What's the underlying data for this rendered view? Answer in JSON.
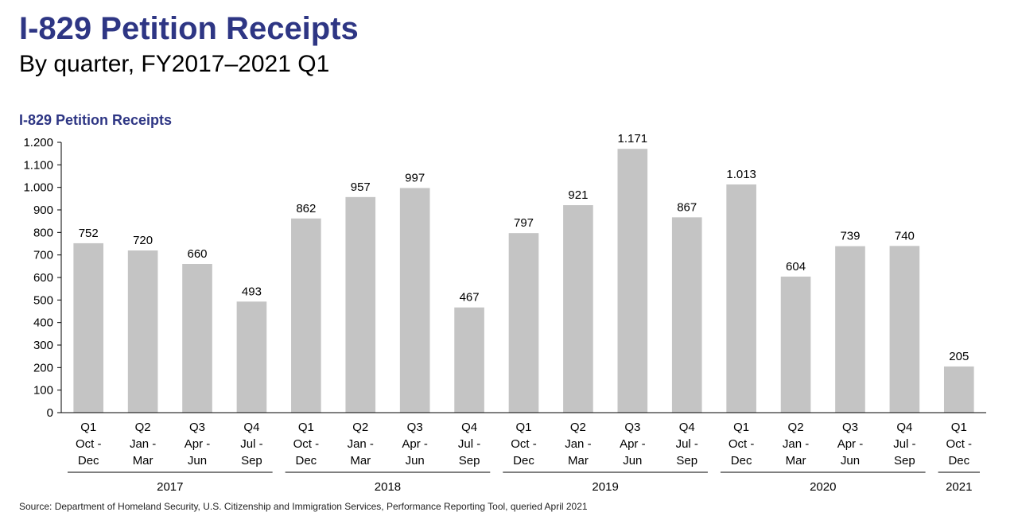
{
  "header": {
    "title": "I-829 Petition Receipts",
    "subtitle": "By quarter, FY2017–2021 Q1"
  },
  "source": "Source: Department of Homeland Security, U.S. Citizenship and Immigration Services, Performance Reporting Tool, queried April 2021",
  "colors": {
    "title": "#2e3684",
    "bar": "#c4c4c4",
    "axis": "#000000"
  },
  "chart_data": {
    "type": "bar",
    "title": "I-829 Petition Receipts",
    "xlabel": "",
    "ylabel": "",
    "ylim": [
      0,
      1200
    ],
    "yticks": [
      0,
      100,
      200,
      300,
      400,
      500,
      600,
      700,
      800,
      900,
      1000,
      1100,
      1200
    ],
    "ytick_labels": [
      "0",
      "100",
      "200",
      "300",
      "400",
      "500",
      "600",
      "700",
      "800",
      "900",
      "1.000",
      "1.100",
      "1.200"
    ],
    "categories": [
      [
        "Q1",
        "Oct -",
        "Dec"
      ],
      [
        "Q2",
        "Jan -",
        "Mar"
      ],
      [
        "Q3",
        "Apr -",
        "Jun"
      ],
      [
        "Q4",
        "Jul -",
        "Sep"
      ],
      [
        "Q1",
        "Oct -",
        "Dec"
      ],
      [
        "Q2",
        "Jan -",
        "Mar"
      ],
      [
        "Q3",
        "Apr -",
        "Jun"
      ],
      [
        "Q4",
        "Jul -",
        "Sep"
      ],
      [
        "Q1",
        "Oct -",
        "Dec"
      ],
      [
        "Q2",
        "Jan -",
        "Mar"
      ],
      [
        "Q3",
        "Apr -",
        "Jun"
      ],
      [
        "Q4",
        "Jul -",
        "Sep"
      ],
      [
        "Q1",
        "Oct -",
        "Dec"
      ],
      [
        "Q2",
        "Jan -",
        "Mar"
      ],
      [
        "Q3",
        "Apr -",
        "Jun"
      ],
      [
        "Q4",
        "Jul -",
        "Sep"
      ],
      [
        "Q1",
        "Oct -",
        "Dec"
      ]
    ],
    "values": [
      752,
      720,
      660,
      493,
      862,
      957,
      997,
      467,
      797,
      921,
      1171,
      867,
      1013,
      604,
      739,
      740,
      205
    ],
    "value_labels": [
      "752",
      "720",
      "660",
      "493",
      "862",
      "957",
      "997",
      "467",
      "797",
      "921",
      "1.171",
      "867",
      "1.013",
      "604",
      "739",
      "740",
      "205"
    ],
    "groups": [
      {
        "label": "2017",
        "start": 0,
        "count": 4
      },
      {
        "label": "2018",
        "start": 4,
        "count": 4
      },
      {
        "label": "2019",
        "start": 8,
        "count": 4
      },
      {
        "label": "2020",
        "start": 12,
        "count": 4
      },
      {
        "label": "2021",
        "start": 16,
        "count": 1
      }
    ],
    "grid": false,
    "legend": "none"
  }
}
